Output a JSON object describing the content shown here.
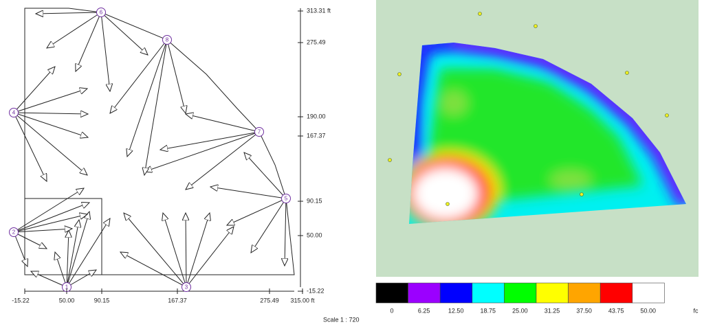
{
  "diagram": {
    "nodes": [
      "1",
      "2",
      "3",
      "4",
      "5",
      "6",
      "7",
      "8"
    ],
    "x_axis": [
      "-15.22",
      "50.00",
      "90.15",
      "167.37",
      "275.49",
      "315.00 ft"
    ],
    "y_axis": [
      "313.31 ft",
      "275.49",
      "190.00",
      "167.37",
      "90.15",
      "50.00",
      "-15.22"
    ],
    "scale": "Scale 1 : 720"
  },
  "heatmap": {
    "legend": {
      "colors": [
        "#000000",
        "#9b00ff",
        "#0000ff",
        "#00ffff",
        "#00ff00",
        "#ffff00",
        "#ffa500",
        "#ff0000",
        "#ffffff"
      ],
      "labels": [
        "0",
        "6.25",
        "12.50",
        "18.75",
        "25.00",
        "31.25",
        "37.50",
        "43.75",
        "50.00"
      ],
      "unit": "fc"
    }
  }
}
